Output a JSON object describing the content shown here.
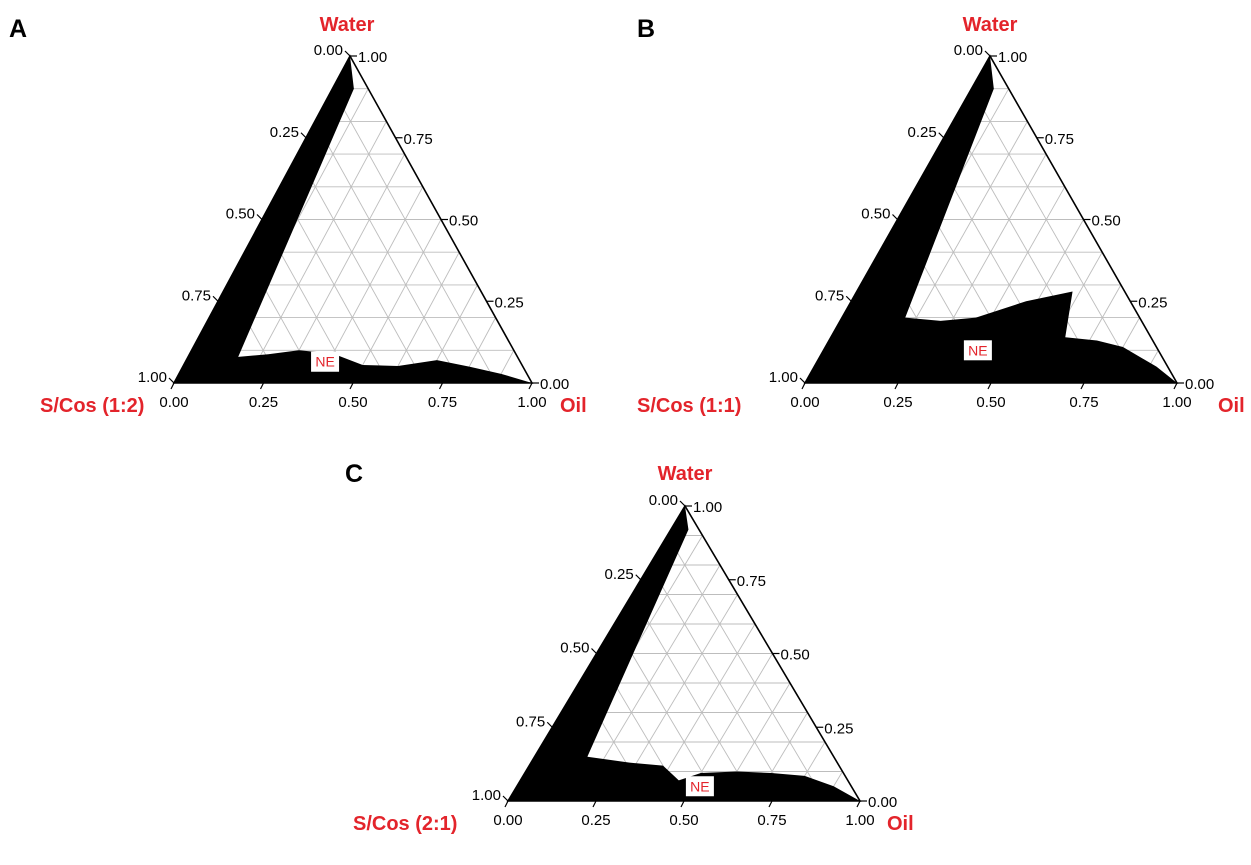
{
  "colors": {
    "label_red": "#e3242b",
    "region": "#000000",
    "grid": "#bdbdbd"
  },
  "tick_values": [
    "0.00",
    "0.25",
    "0.50",
    "0.75",
    "1.00"
  ],
  "chart_data": [
    {
      "type": "ternary",
      "panel_label": "A",
      "vertex_labels": {
        "top": "Water",
        "left": "S/Cos (1:2)",
        "right": "Oil"
      },
      "axis_ticks": [
        0,
        0.25,
        0.5,
        0.75,
        1
      ],
      "grid": true,
      "region_label": "NE",
      "region_label_point": {
        "oil": 0.39,
        "water": 0.065
      },
      "region_boundary": [
        {
          "oil": 0.0,
          "water": 1.0
        },
        {
          "oil": 0.0,
          "water": 0.0
        },
        {
          "oil": 1.0,
          "water": 0.0
        },
        {
          "oil": 0.9,
          "water": 0.028
        },
        {
          "oil": 0.8,
          "water": 0.05
        },
        {
          "oil": 0.7,
          "water": 0.07
        },
        {
          "oil": 0.6,
          "water": 0.052
        },
        {
          "oil": 0.5,
          "water": 0.055
        },
        {
          "oil": 0.4,
          "water": 0.09
        },
        {
          "oil": 0.3,
          "water": 0.1
        },
        {
          "oil": 0.22,
          "water": 0.088
        },
        {
          "oil": 0.14,
          "water": 0.08
        },
        {
          "oil": 0.06,
          "water": 0.9
        }
      ]
    },
    {
      "type": "ternary",
      "panel_label": "B",
      "vertex_labels": {
        "top": "Water",
        "left": "S/Cos (1:1)",
        "right": "Oil"
      },
      "axis_ticks": [
        0,
        0.25,
        0.5,
        0.75,
        1
      ],
      "grid": true,
      "region_label": "NE",
      "region_label_point": {
        "oil": 0.415,
        "water": 0.1
      },
      "region_boundary": [
        {
          "oil": 0.0,
          "water": 1.0
        },
        {
          "oil": 0.0,
          "water": 0.0
        },
        {
          "oil": 1.0,
          "water": 0.0
        },
        {
          "oil": 0.92,
          "water": 0.05
        },
        {
          "oil": 0.8,
          "water": 0.11
        },
        {
          "oil": 0.72,
          "water": 0.13
        },
        {
          "oil": 0.63,
          "water": 0.14
        },
        {
          "oil": 0.58,
          "water": 0.28
        },
        {
          "oil": 0.47,
          "water": 0.25
        },
        {
          "oil": 0.36,
          "water": 0.2
        },
        {
          "oil": 0.27,
          "water": 0.19
        },
        {
          "oil": 0.17,
          "water": 0.2
        },
        {
          "oil": 0.06,
          "water": 0.9
        }
      ]
    },
    {
      "type": "ternary",
      "panel_label": "C",
      "vertex_labels": {
        "top": "Water",
        "left": "S/Cos (2:1)",
        "right": "Oil"
      },
      "axis_ticks": [
        0,
        0.25,
        0.5,
        0.75,
        1
      ],
      "grid": true,
      "region_label": "NE",
      "region_label_point": {
        "oil": 0.52,
        "water": 0.05
      },
      "region_boundary": [
        {
          "oil": 0.0,
          "water": 1.0
        },
        {
          "oil": 0.0,
          "water": 0.0
        },
        {
          "oil": 1.0,
          "water": 0.0
        },
        {
          "oil": 0.9,
          "water": 0.05
        },
        {
          "oil": 0.8,
          "water": 0.085
        },
        {
          "oil": 0.7,
          "water": 0.095
        },
        {
          "oil": 0.6,
          "water": 0.1
        },
        {
          "oil": 0.5,
          "water": 0.095
        },
        {
          "oil": 0.45,
          "water": 0.07
        },
        {
          "oil": 0.38,
          "water": 0.12
        },
        {
          "oil": 0.28,
          "water": 0.13
        },
        {
          "oil": 0.15,
          "water": 0.15
        },
        {
          "oil": 0.05,
          "water": 0.92
        }
      ]
    }
  ]
}
